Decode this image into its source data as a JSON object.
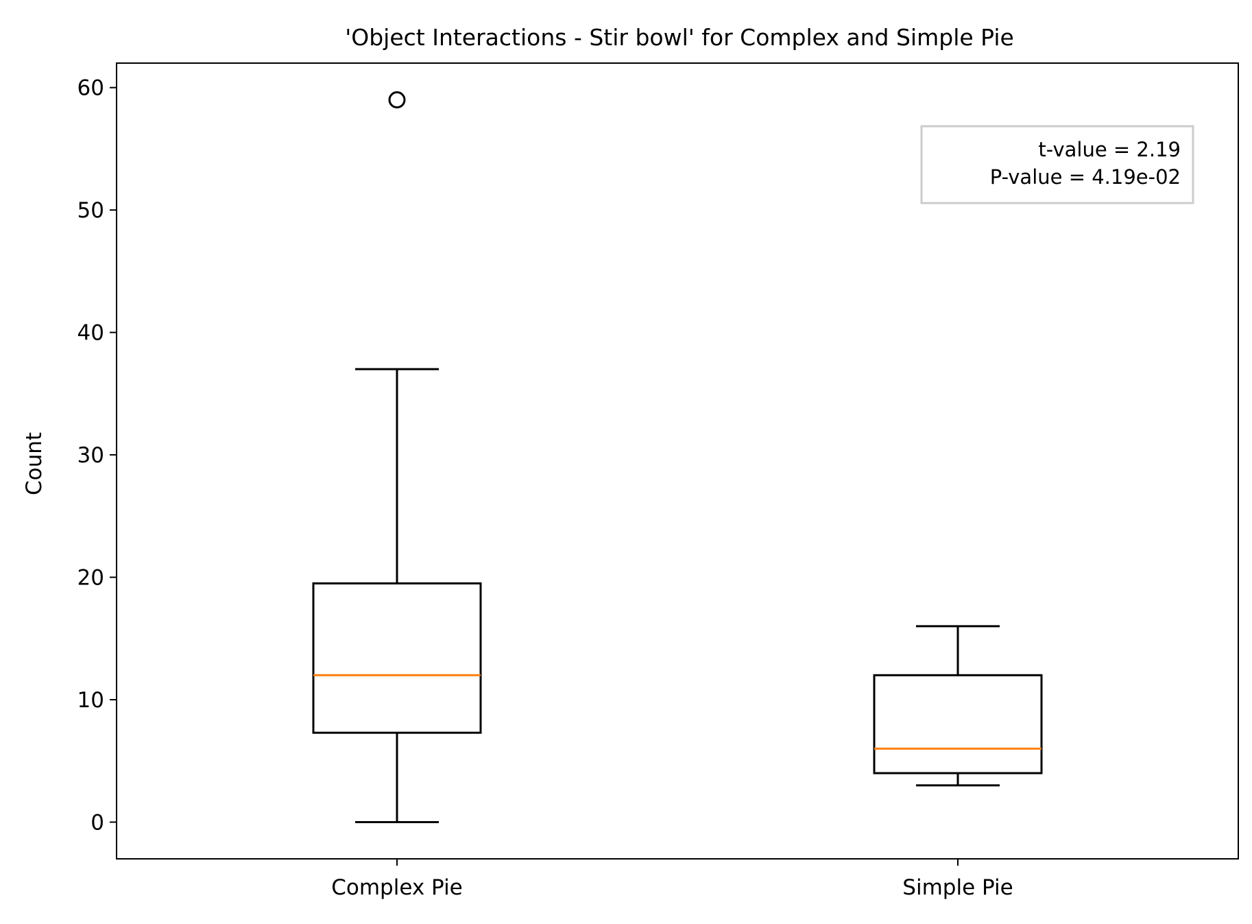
{
  "chart_data": {
    "type": "box",
    "title": "'Object Interactions - Stir bowl' for Complex and Simple Pie",
    "xlabel": "",
    "ylabel": "Count",
    "ylim": [
      -3,
      62
    ],
    "yticks": [
      0,
      10,
      20,
      30,
      40,
      50,
      60
    ],
    "grid": false,
    "categories": [
      "Complex Pie",
      "Simple Pie"
    ],
    "boxes": [
      {
        "category": "Complex Pie",
        "whisker_low": 0,
        "q1": 7.3,
        "median": 12,
        "q3": 19.5,
        "whisker_high": 37,
        "outliers": [
          59
        ]
      },
      {
        "category": "Simple Pie",
        "whisker_low": 3,
        "q1": 4,
        "median": 6,
        "q3": 12,
        "whisker_high": 16,
        "outliers": []
      }
    ],
    "annotation": {
      "lines": [
        "t-value = 2.19",
        "P-value = 4.19e-02"
      ],
      "placement": "top-right"
    },
    "colors": {
      "box": "#000000",
      "median": "#ff7f0e",
      "annotation_border": "#cccccc"
    }
  }
}
